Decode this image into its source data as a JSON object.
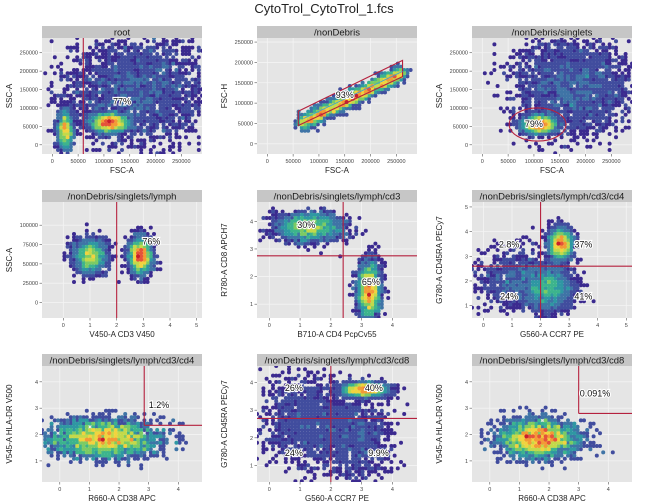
{
  "figure": {
    "title": "CytoTrol_CytoTrol_1.fcs"
  },
  "colors": {
    "panel_bg": "#e5e5e5",
    "strip_bg": "#c6c6c6",
    "gate": "#b5213e",
    "grid": "#f4f4f4"
  },
  "chart_data": [
    {
      "type": "scatter",
      "subtitle": "root",
      "xlabel": "FSC-A",
      "ylabel": "SSC-A",
      "xlim": [
        -20000,
        290000
      ],
      "ylim": [
        -25000,
        290000
      ],
      "xticks": [
        0,
        50000,
        100000,
        150000,
        200000,
        250000
      ],
      "yticks": [
        0,
        50000,
        100000,
        150000,
        200000,
        250000
      ],
      "gate": {
        "kind": "vline",
        "x": 60000
      },
      "populations": [
        {
          "x": 165000,
          "y": 150000,
          "sx": 70000,
          "sy": 75000,
          "w": 1
        },
        {
          "x": 110000,
          "y": 60000,
          "sx": 18000,
          "sy": 12000,
          "w": 0.9
        },
        {
          "x": 25000,
          "y": 40000,
          "sx": 7000,
          "sy": 25000,
          "w": 0.5
        }
      ],
      "labels": [
        {
          "text": "77%",
          "x": 135000,
          "y": 110000
        }
      ]
    },
    {
      "type": "scatter",
      "subtitle": "/nonDebris",
      "xlabel": "FSC-A",
      "ylabel": "FSC-H",
      "xlim": [
        -20000,
        290000
      ],
      "ylim": [
        -25000,
        260000
      ],
      "xticks": [
        0,
        50000,
        100000,
        150000,
        200000,
        250000
      ],
      "yticks": [
        0,
        50000,
        100000,
        150000,
        200000,
        250000
      ],
      "gate": {
        "kind": "diag"
      },
      "populations": [
        {
          "diag": true,
          "x0": 65000,
          "x1": 262000,
          "y0": 50000,
          "y1": 175000,
          "w": 1
        }
      ],
      "labels": [
        {
          "text": "93%",
          "x": 150000,
          "y": 112000
        }
      ]
    },
    {
      "type": "scatter",
      "subtitle": "/nonDebris/singlets",
      "xlabel": "FSC-A",
      "ylabel": "SSC-A",
      "xlim": [
        -20000,
        290000
      ],
      "ylim": [
        -25000,
        290000
      ],
      "xticks": [
        0,
        50000,
        100000,
        150000,
        200000,
        250000
      ],
      "yticks": [
        0,
        50000,
        100000,
        150000,
        200000,
        250000
      ],
      "gate": {
        "kind": "ellipse",
        "cx": 107000,
        "cy": 55000,
        "rx": 55000,
        "ry": 45000
      },
      "populations": [
        {
          "x": 175000,
          "y": 160000,
          "sx": 55000,
          "sy": 65000,
          "w": 1
        },
        {
          "x": 110000,
          "y": 55000,
          "sx": 16000,
          "sy": 12000,
          "w": 0.9
        }
      ],
      "labels": [
        {
          "text": "79%",
          "x": 100000,
          "y": 48000
        }
      ]
    },
    {
      "type": "scatter",
      "subtitle": "/nonDebris/singlets/lymph",
      "xlabel": "V450-A CD3 V450",
      "ylabel": "SSC-A",
      "xlim": [
        -0.8,
        5.2
      ],
      "ylim": [
        -20000,
        130000
      ],
      "xticks": [
        0,
        1,
        2,
        3,
        4,
        5
      ],
      "yticks": [
        0,
        25000,
        50000,
        75000,
        100000
      ],
      "gate": {
        "kind": "vline",
        "x": 2.0
      },
      "populations": [
        {
          "x": 1.0,
          "y": 60000,
          "sx": 0.3,
          "sy": 11000,
          "w": 0.7
        },
        {
          "x": 2.9,
          "y": 60000,
          "sx": 0.2,
          "sy": 11000,
          "w": 1
        }
      ],
      "labels": [
        {
          "text": "76%",
          "x": 3.3,
          "y": 75000
        }
      ]
    },
    {
      "type": "scatter",
      "subtitle": "/nonDebris/singlets/lymph/cd3",
      "xlabel": "B710-A CD4 PcpCv55",
      "ylabel": "R780-A CD8 APCH7",
      "xlim": [
        -0.4,
        4.8
      ],
      "ylim": [
        0.5,
        4.7
      ],
      "xticks": [
        0,
        1,
        2,
        3,
        4
      ],
      "yticks": [
        1,
        2,
        3,
        4
      ],
      "gate": {
        "kind": "cross",
        "x": 2.4,
        "y": 2.75
      },
      "populations": [
        {
          "x": 1.3,
          "y": 3.8,
          "sx": 0.55,
          "sy": 0.25,
          "w": 0.8
        },
        {
          "x": 3.25,
          "y": 1.5,
          "sx": 0.18,
          "sy": 0.5,
          "w": 1
        }
      ],
      "labels": [
        {
          "text": "30%",
          "x": 1.2,
          "y": 3.75
        },
        {
          "text": "65%",
          "x": 3.3,
          "y": 1.7
        }
      ]
    },
    {
      "type": "scatter",
      "subtitle": "/nonDebris/singlets/lymph/cd3/cd4",
      "xlabel": "G560-A CCR7 PE",
      "ylabel": "G780-A CD45RA PECy7",
      "xlim": [
        -0.4,
        5.2
      ],
      "ylim": [
        0.5,
        5.2
      ],
      "xticks": [
        0,
        1,
        2,
        3,
        4,
        5
      ],
      "yticks": [
        1,
        2,
        3,
        4,
        5
      ],
      "gate": {
        "kind": "cross",
        "x": 2.0,
        "y": 2.6
      },
      "populations": [
        {
          "x": 2.7,
          "y": 3.5,
          "sx": 0.2,
          "sy": 0.3,
          "w": 1
        },
        {
          "x": 2.3,
          "y": 1.7,
          "sx": 0.4,
          "sy": 0.45,
          "w": 0.8
        },
        {
          "x": 1.2,
          "y": 2.0,
          "sx": 0.7,
          "sy": 0.6,
          "w": 0.4
        }
      ],
      "labels": [
        {
          "text": "2.8%",
          "x": 0.9,
          "y": 3.35
        },
        {
          "text": "37%",
          "x": 3.5,
          "y": 3.35
        },
        {
          "text": "24%",
          "x": 0.9,
          "y": 1.25
        },
        {
          "text": "41%",
          "x": 3.5,
          "y": 1.25
        }
      ]
    },
    {
      "type": "scatter",
      "subtitle": "/nonDebris/singlets/lymph/cd3/cd4",
      "xlabel": "R660-A CD38 APC",
      "ylabel": "V545-A HLA-DR V500",
      "xlim": [
        -0.6,
        4.8
      ],
      "ylim": [
        0.2,
        4.6
      ],
      "xticks": [
        0,
        1,
        2,
        3,
        4
      ],
      "yticks": [
        1,
        2,
        3,
        4
      ],
      "gate": {
        "kind": "corner",
        "x": 2.85,
        "y": 2.35
      },
      "populations": [
        {
          "x": 1.5,
          "y": 1.85,
          "sx": 0.9,
          "sy": 0.35,
          "w": 1
        }
      ],
      "labels": [
        {
          "text": "1.2%",
          "x": 3.35,
          "y": 3.0
        }
      ]
    },
    {
      "type": "scatter",
      "subtitle": "/nonDebris/singlets/lymph/cd3/cd8",
      "xlabel": "G560-A CCR7 PE",
      "ylabel": "G780-A CD45RA PECy7",
      "xlim": [
        -0.4,
        4.8
      ],
      "ylim": [
        0.4,
        4.6
      ],
      "xticks": [
        0,
        1,
        2,
        3,
        4
      ],
      "yticks": [
        1,
        2,
        3,
        4
      ],
      "gate": {
        "kind": "cross",
        "x": 2.0,
        "y": 2.7
      },
      "populations": [
        {
          "x": 3.1,
          "y": 3.75,
          "sx": 0.35,
          "sy": 0.12,
          "w": 1
        },
        {
          "x": 1.2,
          "y": 2.6,
          "sx": 0.7,
          "sy": 0.8,
          "w": 0.5
        },
        {
          "x": 2.8,
          "y": 2.0,
          "sx": 0.6,
          "sy": 0.7,
          "w": 0.4
        }
      ],
      "labels": [
        {
          "text": "26%",
          "x": 0.8,
          "y": 3.7
        },
        {
          "text": "40%",
          "x": 3.4,
          "y": 3.7
        },
        {
          "text": "24%",
          "x": 0.8,
          "y": 1.35
        },
        {
          "text": "9.9%",
          "x": 3.55,
          "y": 1.35
        }
      ]
    },
    {
      "type": "scatter",
      "subtitle": "/nonDebris/singlets/lymph/cd3/cd8",
      "xlabel": "R660-A CD38 APC",
      "ylabel": "V545-A HLA-DR V500",
      "xlim": [
        -0.6,
        4.8
      ],
      "ylim": [
        0.2,
        4.6
      ],
      "xticks": [
        0,
        1,
        2,
        3,
        4
      ],
      "yticks": [
        1,
        2,
        3,
        4
      ],
      "gate": {
        "kind": "corner",
        "x": 3.0,
        "y": 2.8
      },
      "populations": [
        {
          "x": 1.65,
          "y": 1.85,
          "sx": 0.65,
          "sy": 0.35,
          "w": 1
        }
      ],
      "labels": [
        {
          "text": "0.091%",
          "x": 3.55,
          "y": 3.45
        }
      ]
    }
  ]
}
